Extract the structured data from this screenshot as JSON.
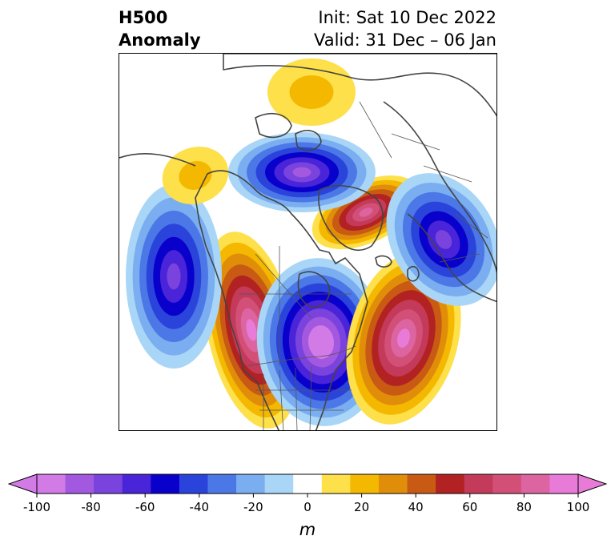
{
  "title": {
    "left_line1": "H500",
    "left_line2": "Anomaly",
    "init": "Init: Sat 10 Dec 2022",
    "valid": "Valid: 31 Dec – 06 Jan"
  },
  "colorbar": {
    "unit": "m",
    "ticks": [
      "-100",
      "-80",
      "-60",
      "-40",
      "-20",
      "0",
      "20",
      "40",
      "60",
      "80",
      "100"
    ],
    "levels": [
      -100,
      -90,
      -80,
      -70,
      -60,
      -50,
      -40,
      -30,
      -20,
      -10,
      10,
      20,
      30,
      40,
      50,
      60,
      70,
      80,
      90,
      100
    ],
    "colors": [
      "#d27ae6",
      "#a259e0",
      "#7a43dd",
      "#4a24d8",
      "#0a00cc",
      "#2a44db",
      "#4b78e6",
      "#7aaef0",
      "#a9d6f7",
      "#ffffff",
      "#fde04a",
      "#f5b800",
      "#e08e0a",
      "#c85a14",
      "#b22222",
      "#c43a5a",
      "#d25078",
      "#dc64a0",
      "#e87ad8"
    ],
    "extend_min_color": "#d27ae6",
    "extend_max_color": "#e87ad8"
  },
  "map": {
    "features": [
      {
        "name": "alaska-ridge",
        "sign": "positive",
        "peak_m": 90
      },
      {
        "name": "hudson-bay-trough",
        "sign": "negative",
        "peak_m": -100
      },
      {
        "name": "greenland-ridge",
        "sign": "positive",
        "peak_m": 80
      },
      {
        "name": "atlantic-ridge",
        "sign": "positive",
        "peak_m": 90
      },
      {
        "name": "pacific-trough",
        "sign": "negative",
        "peak_m": -70
      },
      {
        "name": "siberian-trough",
        "sign": "negative",
        "peak_m": -80
      },
      {
        "name": "scandinavian-trough",
        "sign": "negative",
        "peak_m": -70
      },
      {
        "name": "arctic-ridge",
        "sign": "positive",
        "peak_m": 20
      },
      {
        "name": "east-asia-ridge",
        "sign": "positive",
        "peak_m": 20
      }
    ]
  }
}
